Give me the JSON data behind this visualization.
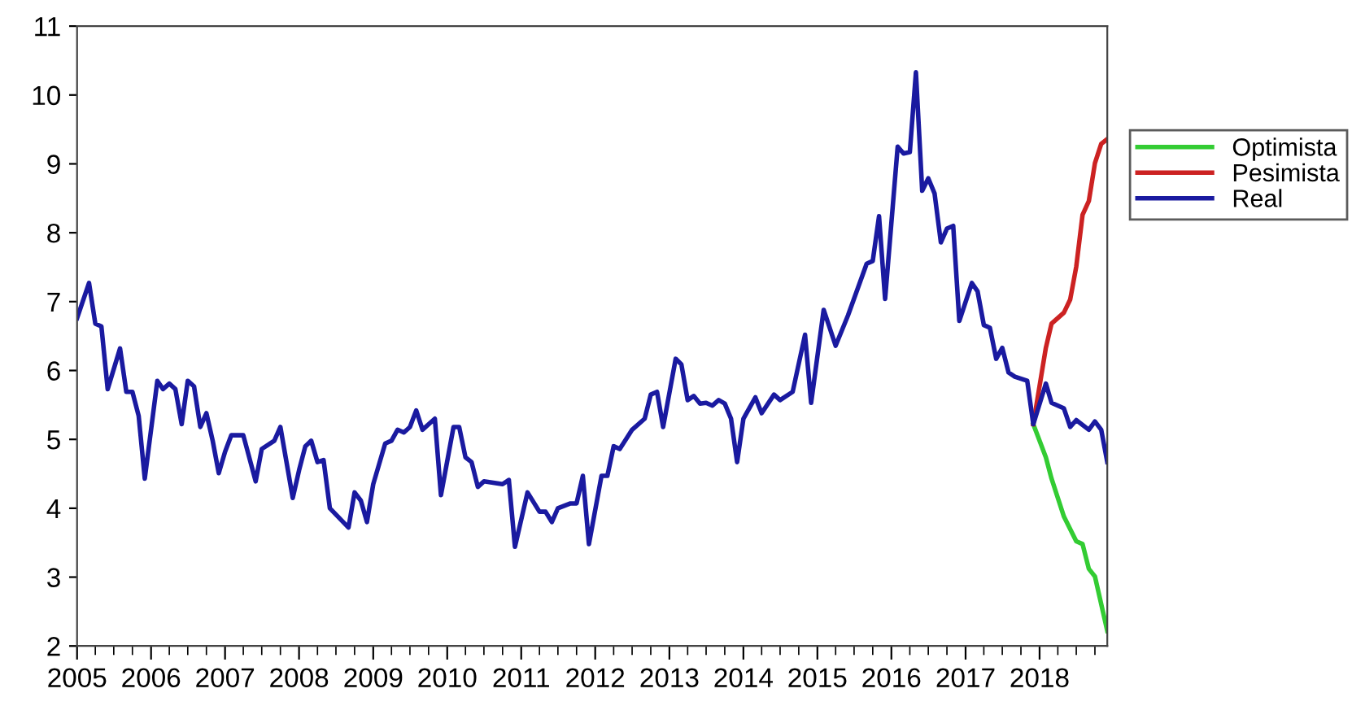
{
  "chart_data": {
    "type": "line",
    "xlim": [
      "2005-01",
      "2018-12"
    ],
    "xticks": [
      "2005",
      "2006",
      "2007",
      "2008",
      "2009",
      "2010",
      "2011",
      "2012",
      "2013",
      "2014",
      "2015",
      "2016",
      "2017",
      "2018"
    ],
    "ylim": [
      2,
      11
    ],
    "yticks": [
      2,
      3,
      4,
      5,
      6,
      7,
      8,
      9,
      10,
      11
    ],
    "grid": false,
    "legend": "right",
    "line_style": "solid",
    "series": [
      {
        "name": "Optimista",
        "color": "#33cc33",
        "x": [
          "2017-12",
          "2018-02",
          "2018-03",
          "2018-05",
          "2018-07",
          "2018-08",
          "2018-09",
          "2018-10",
          "2018-12"
        ],
        "values": [
          5.22,
          4.74,
          4.43,
          3.88,
          3.52,
          3.48,
          3.12,
          3.01,
          2.22
        ]
      },
      {
        "name": "Pesimista",
        "color": "#cc2222",
        "x": [
          "2017-12",
          "2018-02",
          "2018-03",
          "2018-05",
          "2018-06",
          "2018-07",
          "2018-08",
          "2018-09",
          "2018-10",
          "2018-11",
          "2018-12"
        ],
        "values": [
          5.22,
          6.33,
          6.68,
          6.84,
          7.03,
          7.51,
          8.26,
          8.46,
          9.01,
          9.29,
          9.36
        ]
      },
      {
        "name": "Real",
        "color": "#1a1aa0",
        "x": [
          "2005-01",
          "2005-03",
          "2005-04",
          "2005-05",
          "2005-06",
          "2005-08",
          "2005-09",
          "2005-10",
          "2005-11",
          "2005-12",
          "2006-02",
          "2006-03",
          "2006-04",
          "2006-05",
          "2006-06",
          "2006-07",
          "2006-08",
          "2006-09",
          "2006-10",
          "2006-11",
          "2006-12",
          "2007-01",
          "2007-02",
          "2007-04",
          "2007-06",
          "2007-07",
          "2007-09",
          "2007-10",
          "2007-12",
          "2008-01",
          "2008-02",
          "2008-03",
          "2008-04",
          "2008-05",
          "2008-06",
          "2008-09",
          "2008-10",
          "2008-11",
          "2008-12",
          "2009-01",
          "2009-03",
          "2009-04",
          "2009-05",
          "2009-06",
          "2009-07",
          "2009-08",
          "2009-09",
          "2009-11",
          "2009-12",
          "2010-02",
          "2010-03",
          "2010-04",
          "2010-05",
          "2010-06",
          "2010-07",
          "2010-10",
          "2010-11",
          "2010-12",
          "2011-02",
          "2011-04",
          "2011-05",
          "2011-06",
          "2011-07",
          "2011-09",
          "2011-10",
          "2011-11",
          "2011-12",
          "2012-02",
          "2012-03",
          "2012-04",
          "2012-05",
          "2012-07",
          "2012-09",
          "2012-10",
          "2012-11",
          "2012-12",
          "2013-02",
          "2013-03",
          "2013-04",
          "2013-05",
          "2013-06",
          "2013-07",
          "2013-08",
          "2013-09",
          "2013-10",
          "2013-11",
          "2013-12",
          "2014-01",
          "2014-03",
          "2014-04",
          "2014-06",
          "2014-07",
          "2014-09",
          "2014-11",
          "2014-12",
          "2015-02",
          "2015-04",
          "2015-06",
          "2015-09",
          "2015-10",
          "2015-11",
          "2015-12",
          "2016-02",
          "2016-03",
          "2016-04",
          "2016-05",
          "2016-06",
          "2016-07",
          "2016-08",
          "2016-09",
          "2016-10",
          "2016-11",
          "2016-12",
          "2017-02",
          "2017-03",
          "2017-04",
          "2017-05",
          "2017-06",
          "2017-07",
          "2017-08",
          "2017-09",
          "2017-11",
          "2017-12",
          "2018-02",
          "2018-03",
          "2018-05",
          "2018-06",
          "2018-07",
          "2018-09",
          "2018-10",
          "2018-11",
          "2018-12"
        ],
        "values": [
          6.76,
          7.27,
          6.68,
          6.64,
          5.73,
          6.32,
          5.69,
          5.69,
          5.34,
          4.43,
          5.85,
          5.73,
          5.81,
          5.73,
          5.22,
          5.85,
          5.77,
          5.18,
          5.38,
          4.98,
          4.51,
          4.82,
          5.06,
          5.06,
          4.39,
          4.86,
          4.98,
          5.18,
          4.15,
          4.55,
          4.9,
          4.98,
          4.67,
          4.7,
          4.0,
          3.72,
          4.23,
          4.11,
          3.8,
          4.35,
          4.94,
          4.98,
          5.14,
          5.1,
          5.18,
          5.42,
          5.14,
          5.3,
          4.19,
          5.18,
          5.18,
          4.74,
          4.67,
          4.31,
          4.39,
          4.35,
          4.41,
          3.44,
          4.23,
          3.95,
          3.95,
          3.8,
          4.0,
          4.07,
          4.07,
          4.47,
          3.48,
          4.47,
          4.47,
          4.9,
          4.86,
          5.14,
          5.3,
          5.65,
          5.69,
          5.18,
          6.17,
          6.09,
          5.57,
          5.63,
          5.52,
          5.53,
          5.49,
          5.57,
          5.52,
          5.3,
          4.67,
          5.3,
          5.61,
          5.38,
          5.65,
          5.57,
          5.69,
          6.52,
          5.53,
          6.88,
          6.36,
          6.8,
          7.55,
          7.59,
          8.24,
          7.04,
          9.25,
          9.15,
          9.17,
          10.33,
          8.61,
          8.79,
          8.57,
          7.86,
          8.06,
          8.1,
          6.72,
          7.27,
          7.15,
          6.66,
          6.62,
          6.17,
          6.33,
          5.97,
          5.91,
          5.85,
          5.22,
          5.81,
          5.53,
          5.45,
          5.18,
          5.28,
          5.14,
          5.26,
          5.14,
          4.67
        ]
      }
    ]
  }
}
